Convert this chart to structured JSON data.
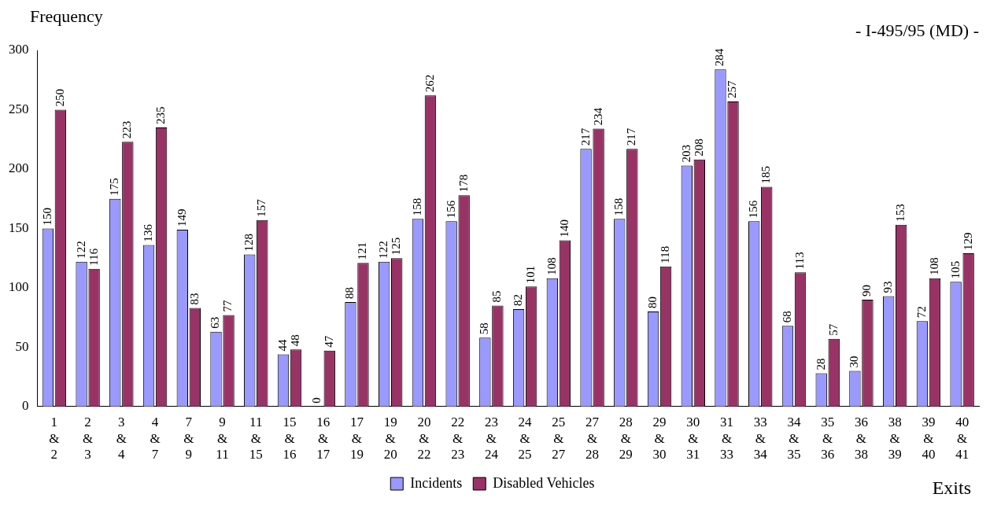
{
  "chart_data": {
    "type": "bar",
    "title": "- I-495/95 (MD) -",
    "ylabel": "Frequency",
    "xlabel": "Exits",
    "categories": [
      "1 & 2",
      "2 & 3",
      "3 & 4",
      "4 & 7",
      "7 & 9",
      "9 & 11",
      "11 & 15",
      "15 & 16",
      "16 & 17",
      "17 & 19",
      "19 & 20",
      "20 & 22",
      "22 & 23",
      "23 & 24",
      "24 & 25",
      "25 & 27",
      "27 & 28",
      "28 & 29",
      "29 & 30",
      "30 & 31",
      "31 & 33",
      "33 & 34",
      "34 & 35",
      "35 & 36",
      "36 & 38",
      "38 & 39",
      "39 & 40",
      "40 & 41"
    ],
    "series": [
      {
        "name": "Incidents",
        "color": "#9999ff",
        "values": [
          150,
          122,
          175,
          136,
          149,
          63,
          128,
          44,
          0,
          88,
          122,
          158,
          156,
          58,
          82,
          108,
          217,
          158,
          80,
          203,
          284,
          156,
          68,
          28,
          30,
          93,
          72,
          105
        ]
      },
      {
        "name": "Disabled Vehicles",
        "color": "#993366",
        "values": [
          250,
          116,
          223,
          235,
          83,
          77,
          157,
          48,
          47,
          121,
          125,
          262,
          178,
          85,
          101,
          140,
          234,
          217,
          118,
          208,
          257,
          185,
          113,
          57,
          90,
          153,
          108,
          129
        ]
      }
    ],
    "ylim": [
      0,
      300
    ],
    "yticks": [
      0,
      50,
      100,
      150,
      200,
      250,
      300
    ],
    "grid": false,
    "legend": "bottom",
    "data_labels": true
  }
}
